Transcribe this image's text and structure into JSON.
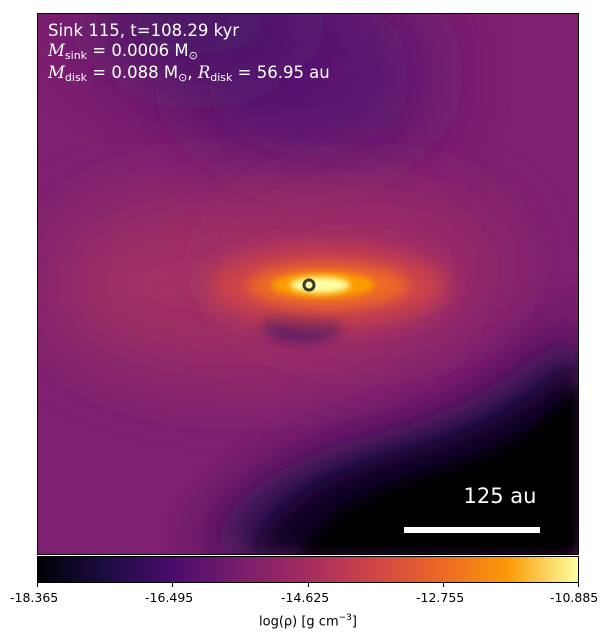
{
  "annotations": {
    "line1": "Sink 115, t=108.29 kyr",
    "sink_mass_symbol": "M",
    "sink_mass_sub": "sink",
    "sink_mass_value": " = 0.0006 M",
    "sink_mass_sub2": "⊙",
    "disk_mass_symbol": "M",
    "disk_mass_sub": "disk",
    "disk_mass_value": " = 0.088 M",
    "disk_mass_sub2": "⊙",
    "disk_radius_sep": ", ",
    "disk_radius_symbol": "R",
    "disk_radius_sub": "disk",
    "disk_radius_value": " = 56.95 au"
  },
  "scale_bar": {
    "label": "125 au"
  },
  "colorbar": {
    "colormap": "inferno",
    "min": -18.365,
    "max": -10.885,
    "ticks": [
      "-18.365",
      "-16.495",
      "-14.625",
      "-12.755",
      "-10.885"
    ],
    "label_pre": "log(ρ) [g cm",
    "label_sup": "−3",
    "label_post": "]"
  }
}
